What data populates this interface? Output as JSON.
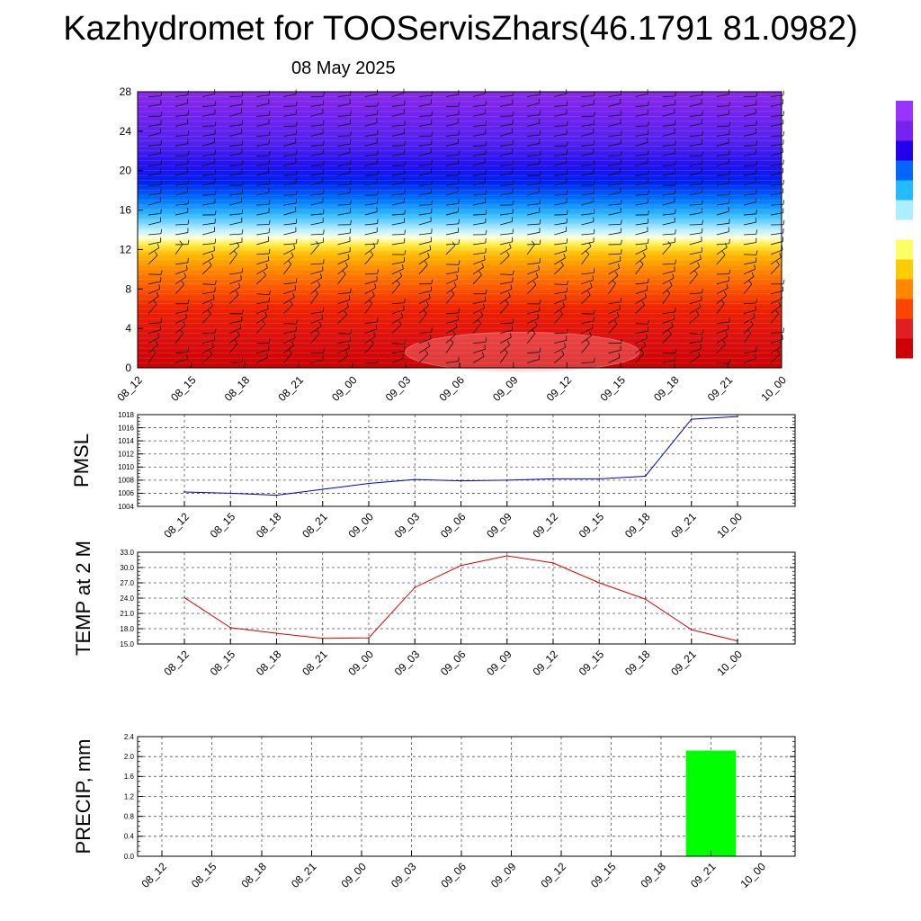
{
  "header": {
    "title": "Kazhydromet for TOOServisZhars(46.1791 81.0982)",
    "date": "08 May 2025"
  },
  "colorbar": {
    "colors": [
      "#cc0000",
      "#e02020",
      "#ff4400",
      "#ff8800",
      "#ffcc00",
      "#ffff66",
      "#ffffff",
      "#aaeeff",
      "#22bbff",
      "#0066ff",
      "#2200ee",
      "#7722ee",
      "#9933ff"
    ]
  },
  "chart_data": [
    {
      "type": "heatmap",
      "title": "",
      "x": [
        "08_12",
        "08_15",
        "08_18",
        "08_21",
        "09_00",
        "09_03",
        "09_06",
        "09_09",
        "09_12",
        "09_15",
        "09_18",
        "09_21",
        "10_00"
      ],
      "ylim": [
        0,
        28
      ],
      "yticks": [
        0,
        4,
        8,
        12,
        16,
        20,
        24,
        28
      ],
      "color_scale": [
        {
          "y": 0,
          "color": "#cc0000"
        },
        {
          "y": 3,
          "color": "#dd1010"
        },
        {
          "y": 6,
          "color": "#ee2200"
        },
        {
          "y": 8,
          "color": "#ff5500"
        },
        {
          "y": 10,
          "color": "#ff8a00"
        },
        {
          "y": 11.5,
          "color": "#ffbb00"
        },
        {
          "y": 12.5,
          "color": "#ffee44"
        },
        {
          "y": 13.2,
          "color": "#ffffdd"
        },
        {
          "y": 14,
          "color": "#bbeeff"
        },
        {
          "y": 15.5,
          "color": "#33bbff"
        },
        {
          "y": 17,
          "color": "#0077ff"
        },
        {
          "y": 18.8,
          "color": "#0022ee"
        },
        {
          "y": 20.5,
          "color": "#2211ee"
        },
        {
          "y": 23,
          "color": "#5522ee"
        },
        {
          "y": 26,
          "color": "#7722ee"
        },
        {
          "y": 28,
          "color": "#8a2be8"
        }
      ],
      "wind_barbs": true
    },
    {
      "type": "line",
      "ylabel": "PMSL",
      "x": [
        "08_12",
        "08_15",
        "08_18",
        "08_21",
        "09_00",
        "09_03",
        "09_06",
        "09_09",
        "09_12",
        "09_15",
        "09_18",
        "09_21",
        "10_00"
      ],
      "values": [
        1006.2,
        1006.0,
        1005.7,
        1006.6,
        1007.5,
        1008.1,
        1007.9,
        1008.0,
        1008.2,
        1008.2,
        1008.6,
        1017.3,
        1017.7
      ],
      "ylim": [
        1004,
        1018
      ],
      "yticks": [
        1004,
        1006,
        1008,
        1010,
        1012,
        1014,
        1016,
        1018
      ],
      "tick_decimals": 0,
      "color": "#0000cc",
      "grid": true
    },
    {
      "type": "line",
      "ylabel": "TEMP at 2 M",
      "x": [
        "08_12",
        "08_15",
        "08_18",
        "08_21",
        "09_00",
        "09_03",
        "09_06",
        "09_09",
        "09_12",
        "09_15",
        "09_18",
        "09_21",
        "10_00"
      ],
      "values": [
        24.1,
        18.2,
        17.1,
        16.1,
        16.2,
        26.1,
        30.4,
        32.3,
        30.9,
        27.0,
        23.8,
        17.8,
        15.6
      ],
      "ylim": [
        15.0,
        33.0
      ],
      "yticks": [
        15.0,
        18.0,
        21.0,
        24.0,
        27.0,
        30.0,
        33.0
      ],
      "tick_decimals": 1,
      "color": "#dd0000",
      "grid": true
    },
    {
      "type": "bar",
      "ylabel": "PRECIP, mm",
      "categories": [
        "08_12",
        "08_15",
        "08_18",
        "08_21",
        "09_00",
        "09_03",
        "09_06",
        "09_09",
        "09_12",
        "09_15",
        "09_18",
        "09_21",
        "10_00"
      ],
      "values": [
        0,
        0,
        0,
        0,
        0,
        0,
        0,
        0,
        0,
        0,
        0,
        2.12,
        0
      ],
      "ylim": [
        0.0,
        2.4
      ],
      "yticks": [
        0.0,
        0.4,
        0.8,
        1.2,
        1.6,
        2.0,
        2.4
      ],
      "tick_decimals": 1,
      "color": "#00ff00",
      "grid": true
    }
  ]
}
